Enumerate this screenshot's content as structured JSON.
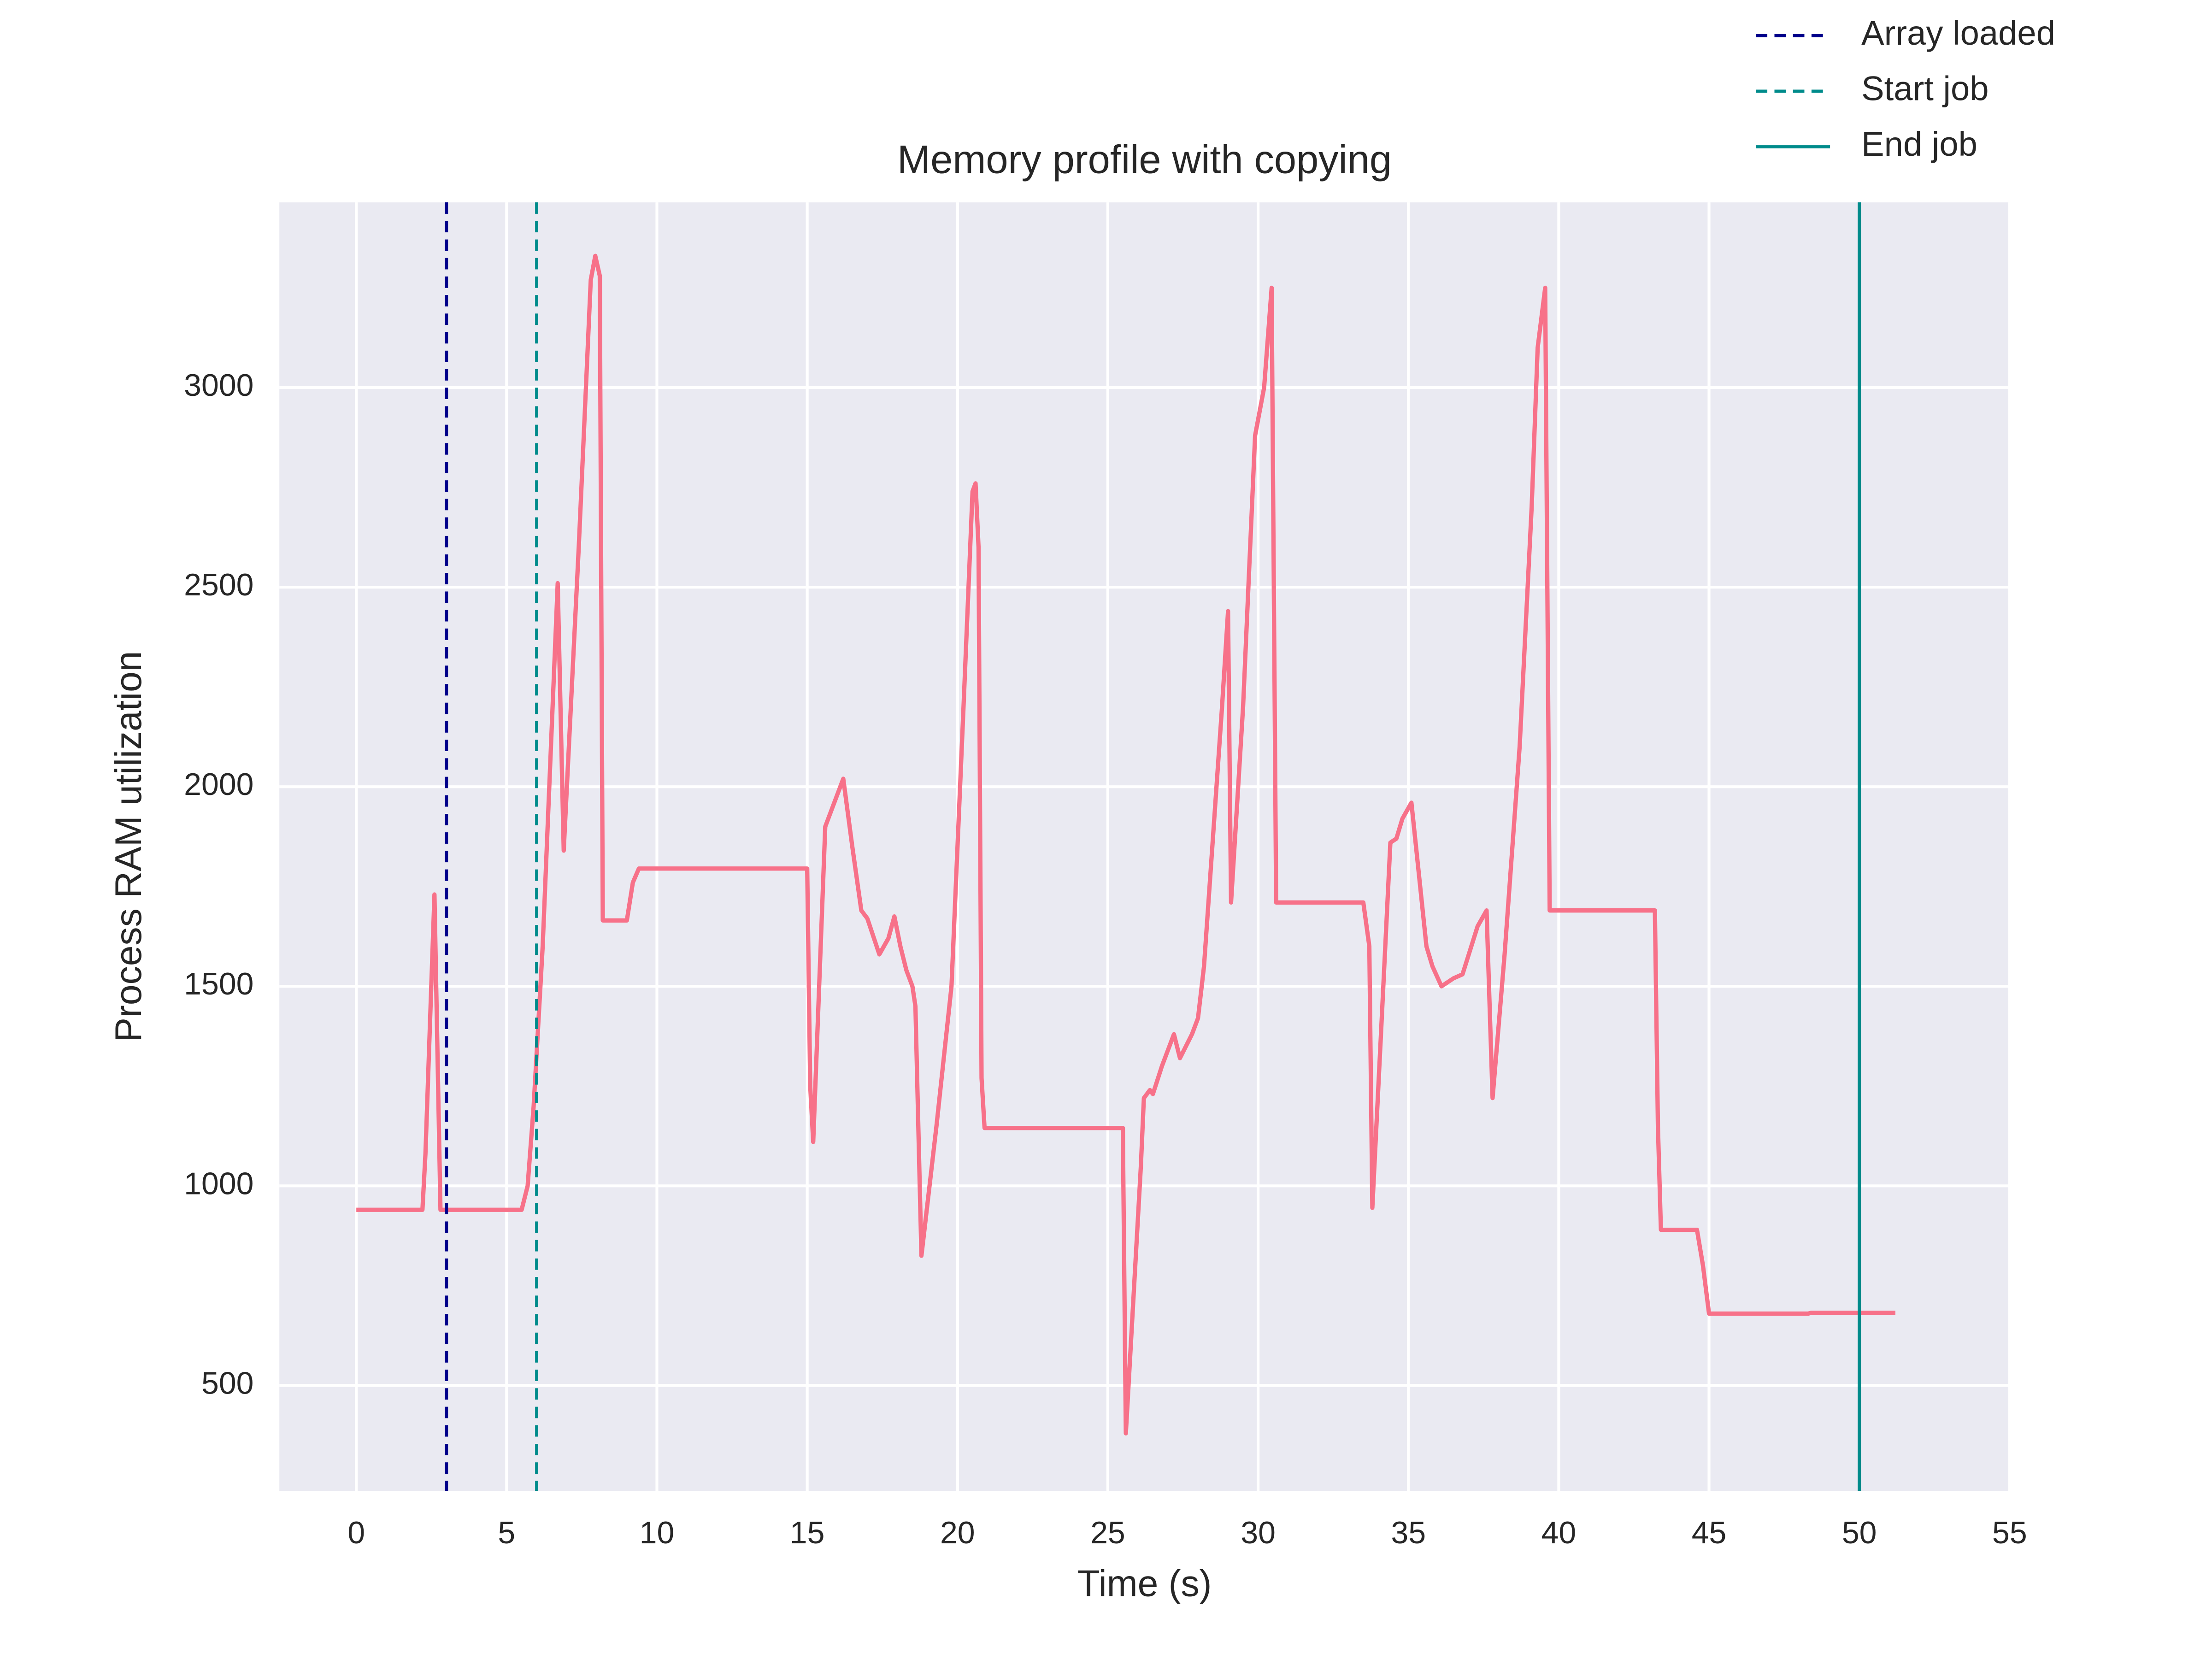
{
  "chart_data": {
    "type": "line",
    "title": "Memory profile with copying",
    "x_label": "Time (s)",
    "y_label": "Process RAM utilization",
    "x": [
      0,
      2.2,
      2.3,
      2.6,
      2.8,
      5.5,
      5.7,
      5.9,
      6.2,
      6.7,
      6.9,
      7.4,
      7.8,
      7.95,
      8.1,
      8.2,
      9.0,
      9.2,
      9.4,
      15.0,
      15.1,
      15.2,
      15.6,
      15.8,
      16.2,
      16.5,
      16.8,
      17.0,
      17.4,
      17.7,
      17.9,
      18.1,
      18.3,
      18.5,
      18.6,
      18.8,
      19.3,
      19.8,
      20.2,
      20.5,
      20.6,
      20.7,
      20.8,
      20.9,
      25.5,
      25.6,
      26.1,
      26.2,
      26.4,
      26.5,
      26.8,
      27.2,
      27.4,
      27.8,
      28.0,
      28.2,
      28.8,
      29.0,
      29.1,
      29.5,
      29.9,
      30.2,
      30.45,
      30.6,
      33.5,
      33.7,
      33.8,
      34.1,
      34.4,
      34.6,
      34.8,
      35.1,
      35.6,
      35.8,
      36.1,
      36.5,
      36.8,
      37.3,
      37.6,
      37.8,
      38.2,
      38.7,
      39.1,
      39.3,
      39.55,
      39.7,
      43.2,
      43.3,
      43.4,
      44.6,
      44.8,
      45.0,
      48.3,
      48.4,
      51.2
    ],
    "series": [
      {
        "color": "#f77189",
        "values": [
          940,
          940,
          1080,
          1730,
          940,
          940,
          1000,
          1200,
          1600,
          2510,
          1840,
          2600,
          3270,
          3330,
          3280,
          1665,
          1665,
          1760,
          1795,
          1795,
          1250,
          1110,
          1900,
          1940,
          2020,
          1850,
          1690,
          1670,
          1580,
          1620,
          1675,
          1600,
          1540,
          1500,
          1450,
          825,
          1150,
          1500,
          2200,
          2740,
          2760,
          2600,
          1270,
          1145,
          1145,
          380,
          1050,
          1220,
          1240,
          1230,
          1300,
          1380,
          1320,
          1380,
          1420,
          1550,
          2200,
          2440,
          1710,
          2200,
          2880,
          3000,
          3250,
          1710,
          1710,
          1600,
          945,
          1400,
          1860,
          1870,
          1920,
          1960,
          1600,
          1550,
          1500,
          1520,
          1530,
          1650,
          1690,
          1220,
          1580,
          2100,
          2700,
          3100,
          3250,
          1690,
          1690,
          1150,
          890,
          890,
          800,
          680,
          680,
          682,
          682
        ]
      }
    ],
    "vlines": [
      {
        "x": 3,
        "label": "Array loaded",
        "color": "#00008b",
        "style": "dashed"
      },
      {
        "x": 6,
        "label": "Start job",
        "color": "#008b8b",
        "style": "dashed"
      },
      {
        "x": 50,
        "label": "End job",
        "color": "#008b8b",
        "style": "solid"
      }
    ],
    "xlim": [
      -2.56,
      55
    ],
    "ylim": [
      236,
      3464
    ],
    "xticks": [
      0,
      5,
      10,
      15,
      20,
      25,
      30,
      35,
      40,
      45,
      50,
      55
    ],
    "yticks": [
      500,
      1000,
      1500,
      2000,
      2500,
      3000
    ],
    "grid": true,
    "legend_position": "upper right outside"
  }
}
